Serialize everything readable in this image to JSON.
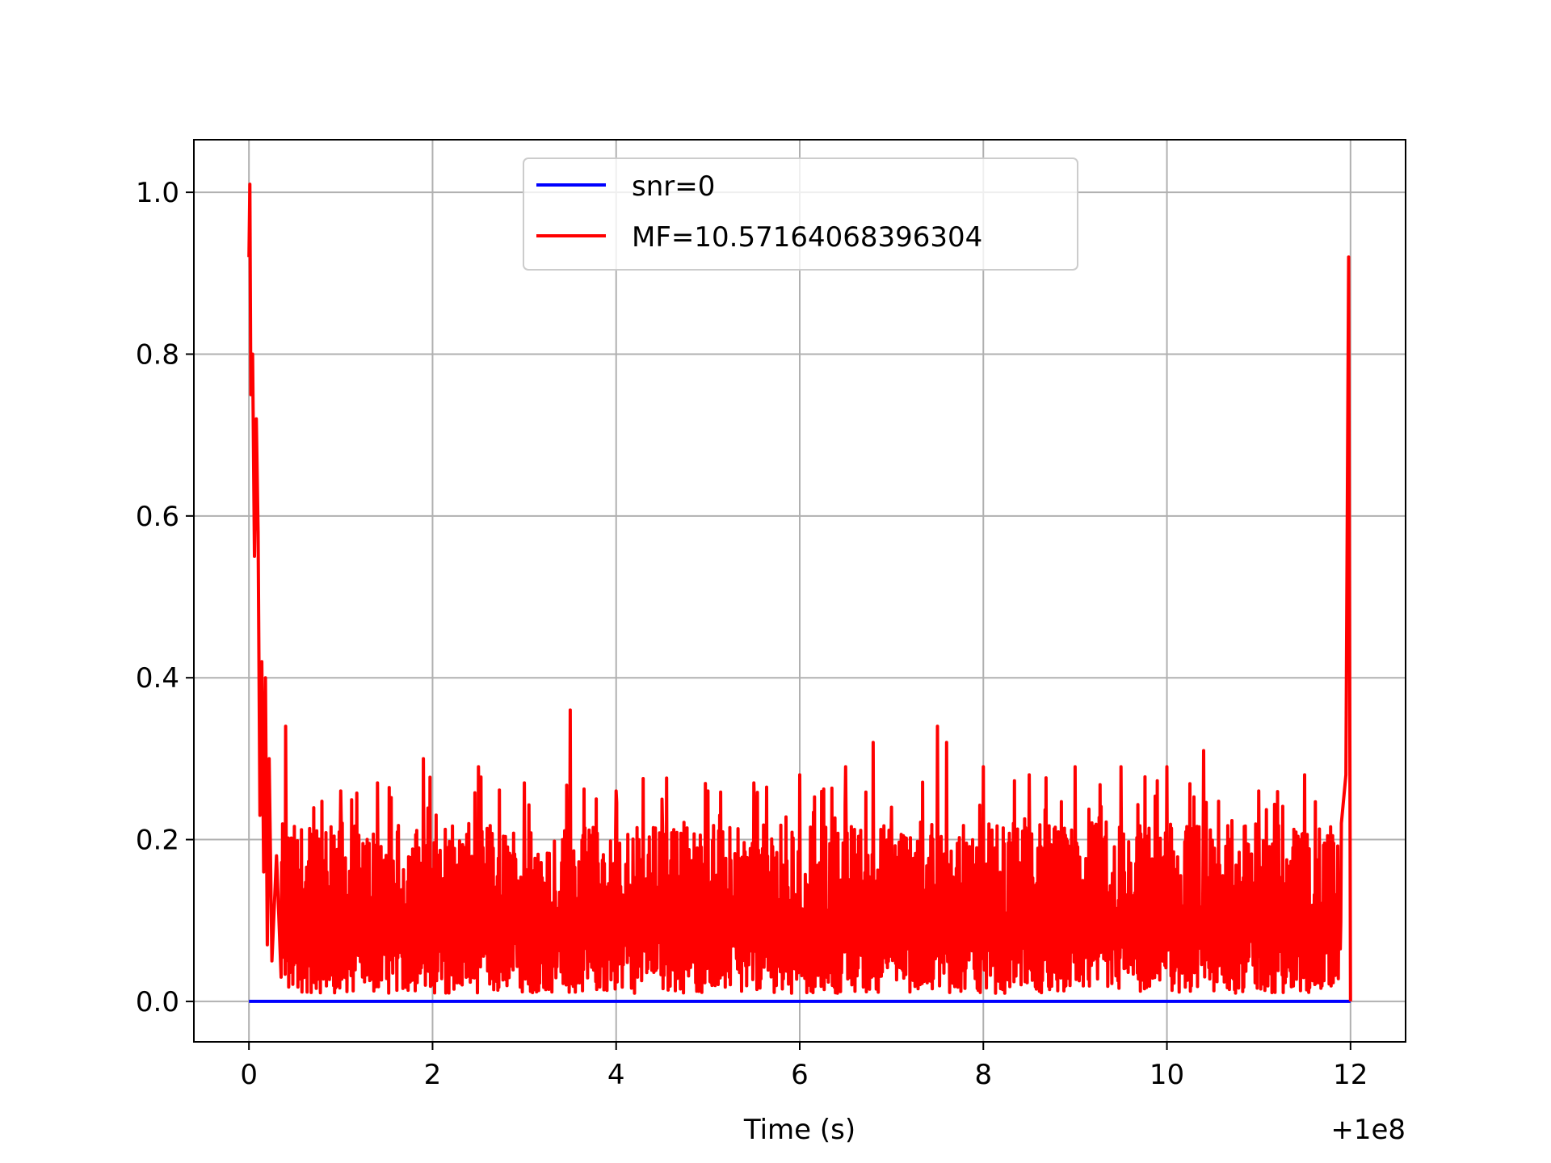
{
  "chart_data": {
    "type": "line",
    "title": "",
    "xlabel": "Time (s)",
    "ylabel": "",
    "x_offset_label": "+1e8",
    "xlim": [
      -0.6,
      12.6
    ],
    "ylim": [
      -0.05,
      1.065
    ],
    "x_ticks": [
      0,
      2,
      4,
      6,
      8,
      10,
      12
    ],
    "x_tick_labels": [
      "0",
      "2",
      "4",
      "6",
      "8",
      "10",
      "12"
    ],
    "y_ticks": [
      0.0,
      0.2,
      0.4,
      0.6,
      0.8,
      1.0
    ],
    "y_tick_labels": [
      "0.0",
      "0.2",
      "0.4",
      "0.6",
      "0.8",
      "1.0"
    ],
    "grid": true,
    "legend_position": "upper center",
    "series": [
      {
        "name": "snr=0",
        "color": "#0000ff",
        "x": [
          0,
          12
        ],
        "y": [
          0,
          0
        ]
      },
      {
        "name": "MF=10.57164068396304",
        "color": "#ff0000",
        "x": [
          0,
          0.01,
          0.02,
          0.04,
          0.06,
          0.08,
          0.1,
          0.12,
          0.14,
          0.16,
          0.18,
          0.2,
          0.22,
          0.25,
          0.3,
          0.35,
          0.4,
          1.0,
          1.4,
          1.9,
          2.5,
          3.0,
          3.5,
          4.0,
          4.5,
          5.0,
          5.5,
          6.0,
          6.5,
          6.8,
          7.0,
          7.5,
          7.6,
          8.0,
          8.5,
          9.0,
          9.5,
          10.0,
          10.4,
          11.0,
          11.5,
          11.9,
          11.95,
          11.98,
          12.0
        ],
        "y": [
          0.92,
          1.01,
          0.75,
          0.8,
          0.55,
          0.72,
          0.58,
          0.23,
          0.42,
          0.16,
          0.4,
          0.07,
          0.3,
          0.05,
          0.18,
          0.03,
          0.34,
          0.26,
          0.27,
          0.3,
          0.29,
          0.27,
          0.36,
          0.26,
          0.25,
          0.26,
          0.27,
          0.28,
          0.29,
          0.32,
          0.24,
          0.34,
          0.32,
          0.29,
          0.28,
          0.29,
          0.29,
          0.29,
          0.31,
          0.26,
          0.28,
          0.22,
          0.28,
          0.92,
          0.0
        ],
        "noise_floor": [
          0.0,
          0.2
        ]
      }
    ]
  }
}
